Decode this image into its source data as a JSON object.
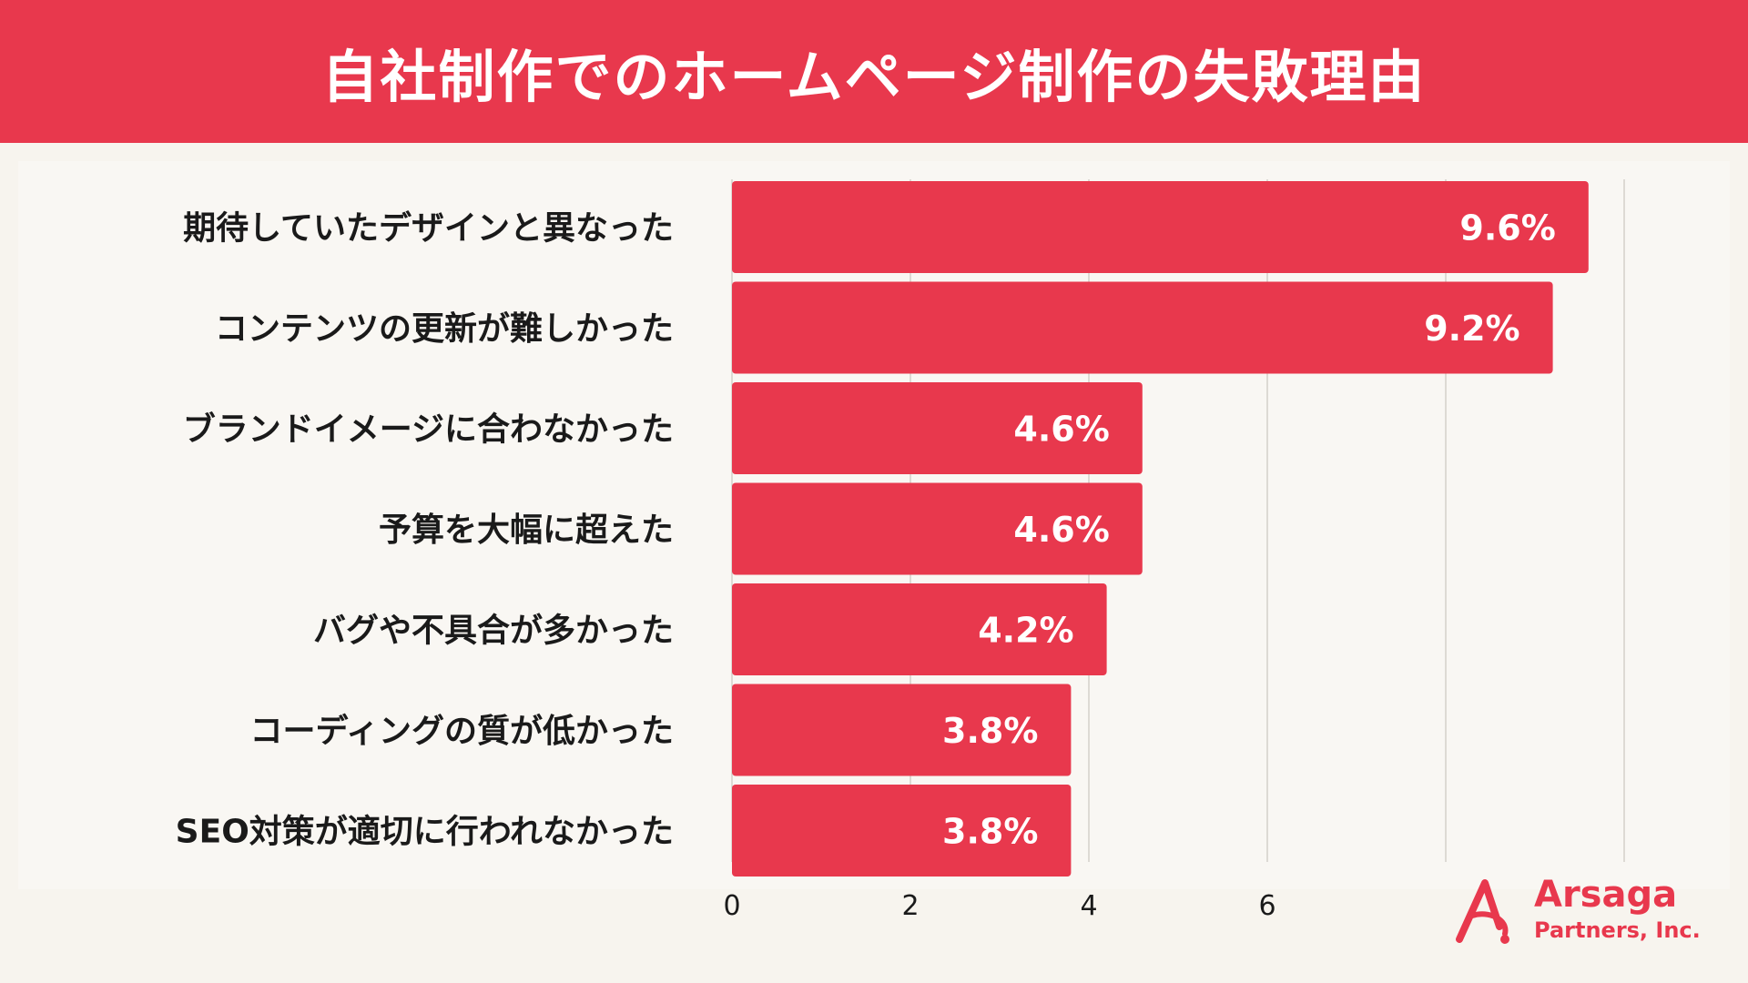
{
  "colors": {
    "accent": "#e8384d",
    "background": "#f7f4ee",
    "text": "#1a1a1a",
    "grid": "#d4d0ca",
    "bar_label": "#ffffff"
  },
  "header": {
    "title": "自社制作でのホームページ制作の失敗理由"
  },
  "logo": {
    "name": "Arsaga",
    "subtitle": "Partners, Inc."
  },
  "chart_data": {
    "type": "bar",
    "orientation": "horizontal",
    "title": "自社制作でのホームページ制作の失敗理由",
    "categories": [
      "期待していたデザインと異なった",
      "コンテンツの更新が難しかった",
      "ブランドイメージに合わなかった",
      "予算を大幅に超えた",
      "バグや不具合が多かった",
      "コーディングの質が低かった",
      "SEO対策が適切に行われなかった"
    ],
    "values": [
      9.6,
      9.2,
      4.6,
      4.6,
      4.2,
      3.8,
      3.8
    ],
    "value_labels": [
      "9.6%",
      "9.2%",
      "4.6%",
      "4.6%",
      "4.2%",
      "3.8%",
      "3.8%"
    ],
    "x_ticks": [
      0,
      2,
      4,
      6
    ],
    "x_tick_labels": [
      "0",
      "2",
      "4",
      "6"
    ],
    "xlim": [
      0,
      10
    ],
    "xlabel": "",
    "ylabel": "",
    "grid": true
  }
}
